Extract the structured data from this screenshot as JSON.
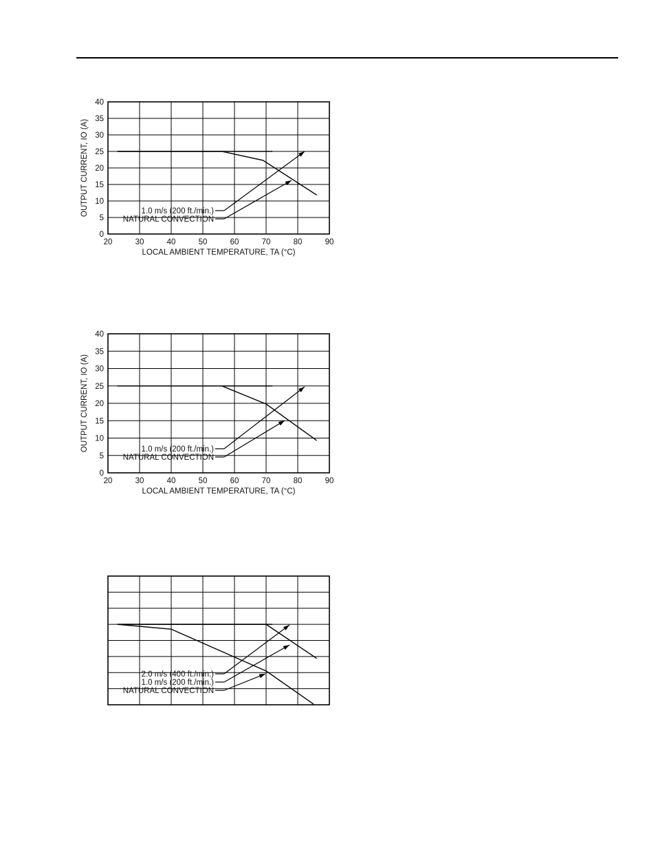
{
  "chart_data": [
    {
      "type": "line",
      "xlabel": "LOCAL AMBIENT TEMPERATURE, TA (°C)",
      "ylabel": "OUTPUT CURRENT, IO (A)",
      "xlim": [
        20,
        90
      ],
      "ylim": [
        0,
        40
      ],
      "x_ticks": [
        "20",
        "30",
        "40",
        "50",
        "60",
        "70",
        "80",
        "90"
      ],
      "y_ticks": [
        "0",
        "5",
        "10",
        "15",
        "20",
        "25",
        "30",
        "35",
        "40"
      ],
      "grid": true,
      "series": [
        {
          "name": "1.0 m/s (200 ft./min.)",
          "x": [
            23,
            56,
            69,
            86
          ],
          "y": [
            25,
            25,
            22.3,
            11.8
          ]
        },
        {
          "name": "NATURAL CONVECTION",
          "x": [
            23,
            56,
            72
          ],
          "y": [
            25,
            25,
            25
          ]
        }
      ],
      "legend": "bottom-left, arrow callouts"
    },
    {
      "type": "line",
      "xlabel": "LOCAL AMBIENT TEMPERATURE, TA (°C)",
      "ylabel": "OUTPUT CURRENT, IO (A)",
      "xlim": [
        20,
        90
      ],
      "ylim": [
        0,
        40
      ],
      "x_ticks": [
        "20",
        "30",
        "40",
        "50",
        "60",
        "70",
        "80",
        "90"
      ],
      "y_ticks": [
        "0",
        "5",
        "10",
        "15",
        "20",
        "25",
        "30",
        "35",
        "40"
      ],
      "grid": true,
      "series": [
        {
          "name": "1.0 m/s (200 ft./min.)",
          "x": [
            23,
            56,
            70,
            86
          ],
          "y": [
            25,
            25,
            19.8,
            9.3
          ]
        },
        {
          "name": "NATURAL CONVECTION",
          "x": [
            23,
            56,
            72
          ],
          "y": [
            25,
            25,
            25
          ]
        }
      ],
      "legend": "bottom-left, arrow callouts"
    },
    {
      "type": "line",
      "xlim": [
        20,
        90
      ],
      "ylim": [
        0,
        40
      ],
      "grid": true,
      "series": [
        {
          "name": "2.0 m/s (400 ft./min.)",
          "x": [
            23,
            70,
            86
          ],
          "y": [
            25,
            25,
            14.4
          ]
        },
        {
          "name": "1.0 m/s (200 ft./min.)",
          "x": [
            23,
            72
          ],
          "y": [
            25,
            25
          ]
        },
        {
          "name": "NATURAL CONVECTION",
          "x": [
            23,
            40,
            70,
            85
          ],
          "y": [
            25,
            23.5,
            10.5,
            0.2
          ]
        }
      ],
      "legend": "bottom-left, arrow callouts"
    }
  ]
}
